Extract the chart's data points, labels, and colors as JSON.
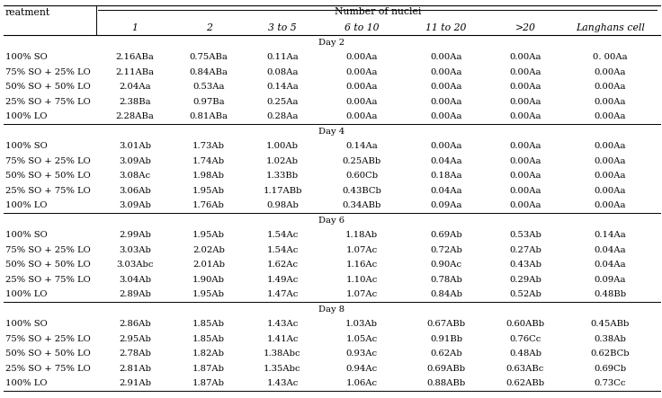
{
  "col_header_row2": [
    "",
    "1",
    "2",
    "3 to 5",
    "6 to 10",
    "11 to 20",
    ">20",
    "Langhans cell"
  ],
  "treatments": [
    "100% SO",
    "75% SO + 25% LO",
    "50% SO + 50% LO",
    "25% SO + 75% LO",
    "100% LO"
  ],
  "days": [
    "Day 2",
    "Day 4",
    "Day 6",
    "Day 8"
  ],
  "data": {
    "Day 2": [
      [
        "2.16ABa",
        "0.75ABa",
        "0.11Aa",
        "0.00Aa",
        "0.00Aa",
        "0.00Aa",
        "0. 00Aa"
      ],
      [
        "2.11ABa",
        "0.84ABa",
        "0.08Aa",
        "0.00Aa",
        "0.00Aa",
        "0.00Aa",
        "0.00Aa"
      ],
      [
        "2.04Aa",
        "0.53Aa",
        "0.14Aa",
        "0.00Aa",
        "0.00Aa",
        "0.00Aa",
        "0.00Aa"
      ],
      [
        "2.38Ba",
        "0.97Ba",
        "0.25Aa",
        "0.00Aa",
        "0.00Aa",
        "0.00Aa",
        "0.00Aa"
      ],
      [
        "2.28ABa",
        "0.81ABa",
        "0.28Aa",
        "0.00Aa",
        "0.00Aa",
        "0.00Aa",
        "0.00Aa"
      ]
    ],
    "Day 4": [
      [
        "3.01Ab",
        "1.73Ab",
        "1.00Ab",
        "0.14Aa",
        "0.00Aa",
        "0.00Aa",
        "0.00Aa"
      ],
      [
        "3.09Ab",
        "1.74Ab",
        "1.02Ab",
        "0.25ABb",
        "0.04Aa",
        "0.00Aa",
        "0.00Aa"
      ],
      [
        "3.08Ac",
        "1.98Ab",
        "1.33Bb",
        "0.60Cb",
        "0.18Aa",
        "0.00Aa",
        "0.00Aa"
      ],
      [
        "3.06Ab",
        "1.95Ab",
        "1.17ABb",
        "0.43BCb",
        "0.04Aa",
        "0.00Aa",
        "0.00Aa"
      ],
      [
        "3.09Ab",
        "1.76Ab",
        "0.98Ab",
        "0.34ABb",
        "0.09Aa",
        "0.00Aa",
        "0.00Aa"
      ]
    ],
    "Day 6": [
      [
        "2.99Ab",
        "1.95Ab",
        "1.54Ac",
        "1.18Ab",
        "0.69Ab",
        "0.53Ab",
        "0.14Aa"
      ],
      [
        "3.03Ab",
        "2.02Ab",
        "1.54Ac",
        "1.07Ac",
        "0.72Ab",
        "0.27Ab",
        "0.04Aa"
      ],
      [
        "3.03Abc",
        "2.01Ab",
        "1.62Ac",
        "1.16Ac",
        "0.90Ac",
        "0.43Ab",
        "0.04Aa"
      ],
      [
        "3.04Ab",
        "1.90Ab",
        "1.49Ac",
        "1.10Ac",
        "0.78Ab",
        "0.29Ab",
        "0.09Aa"
      ],
      [
        "2.89Ab",
        "1.95Ab",
        "1.47Ac",
        "1.07Ac",
        "0.84Ab",
        "0.52Ab",
        "0.48Bb"
      ]
    ],
    "Day 8": [
      [
        "2.86Ab",
        "1.85Ab",
        "1.43Ac",
        "1.03Ab",
        "0.67ABb",
        "0.60ABb",
        "0.45ABb"
      ],
      [
        "2.95Ab",
        "1.85Ab",
        "1.41Ac",
        "1.05Ac",
        "0.91Bb",
        "0.76Cc",
        "0.38Ab"
      ],
      [
        "2.78Ab",
        "1.82Ab",
        "1.38Abc",
        "0.93Ac",
        "0.62Ab",
        "0.48Ab",
        "0.62BCb"
      ],
      [
        "2.81Ab",
        "1.87Ab",
        "1.35Abc",
        "0.94Ac",
        "0.69ABb",
        "0.63ABc",
        "0.69Cb"
      ],
      [
        "2.91Ab",
        "1.87Ab",
        "1.43Ac",
        "1.06Ac",
        "0.88ABb",
        "0.62ABb",
        "0.73Cc"
      ]
    ]
  },
  "bg_color": "#ffffff",
  "text_color": "#000000",
  "line_color": "#000000",
  "font_size": 7.2,
  "header_font_size": 7.8
}
